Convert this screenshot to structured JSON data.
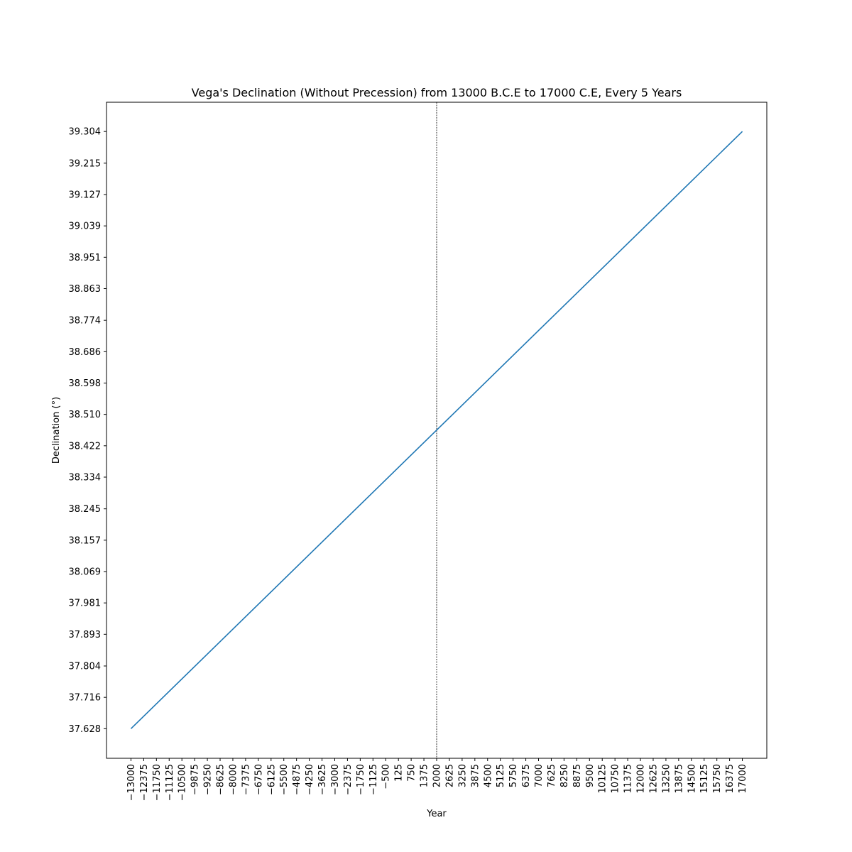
{
  "chart_data": {
    "type": "line",
    "title": "Vega's Declination (Without Precession) from 13000 B.C.E to 17000 C.E, Every 5 Years",
    "xlabel": "Year",
    "ylabel": "Declination (°)",
    "xlim": [
      -14200,
      18200
    ],
    "ylim": [
      37.545,
      39.386
    ],
    "x_ticks": [
      "−13000",
      "−12375",
      "−11750",
      "−11125",
      "−10500",
      "−9875",
      "−9250",
      "−8625",
      "−8000",
      "−7375",
      "−6750",
      "−6125",
      "−5500",
      "−4875",
      "−4250",
      "−3625",
      "−3000",
      "−2375",
      "−1750",
      "−1125",
      "−500",
      "125",
      "750",
      "1375",
      "2000",
      "2625",
      "3250",
      "3875",
      "4500",
      "5125",
      "5750",
      "6375",
      "7000",
      "7625",
      "8250",
      "8875",
      "9500",
      "10125",
      "10750",
      "11375",
      "12000",
      "12625",
      "13250",
      "13875",
      "14500",
      "15125",
      "15750",
      "16375",
      "17000"
    ],
    "y_ticks": [
      "37.628",
      "37.716",
      "37.804",
      "37.893",
      "37.981",
      "38.069",
      "38.157",
      "38.245",
      "38.334",
      "38.422",
      "38.510",
      "38.598",
      "38.686",
      "38.774",
      "38.863",
      "38.951",
      "39.039",
      "39.127",
      "39.215",
      "39.304"
    ],
    "vline_x": 2000,
    "series": [
      {
        "color": "#1f77b4",
        "x": [
          -13000,
          17000
        ],
        "y": [
          37.628,
          39.304
        ]
      }
    ],
    "grid": false,
    "legend": "none"
  }
}
